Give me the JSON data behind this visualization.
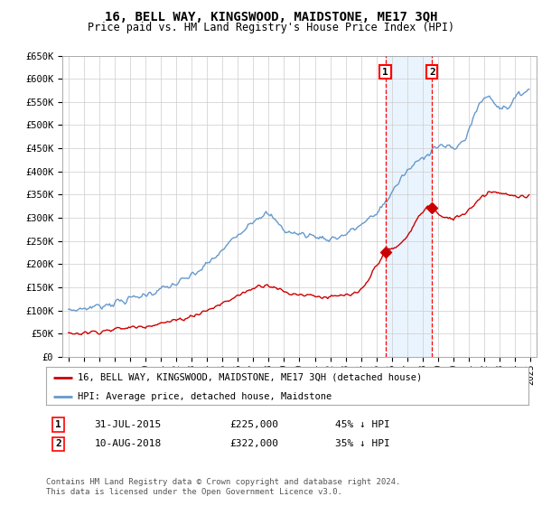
{
  "title": "16, BELL WAY, KINGSWOOD, MAIDSTONE, ME17 3QH",
  "subtitle": "Price paid vs. HM Land Registry's House Price Index (HPI)",
  "ylim": [
    0,
    650000
  ],
  "yticks": [
    0,
    50000,
    100000,
    150000,
    200000,
    250000,
    300000,
    350000,
    400000,
    450000,
    500000,
    550000,
    600000,
    650000
  ],
  "ytick_labels": [
    "£0",
    "£50K",
    "£100K",
    "£150K",
    "£200K",
    "£250K",
    "£300K",
    "£350K",
    "£400K",
    "£450K",
    "£500K",
    "£550K",
    "£600K",
    "£650K"
  ],
  "hpi_color": "#6699cc",
  "price_color": "#cc0000",
  "sale1_date": 2015.58,
  "sale1_price": 225000,
  "sale2_date": 2018.61,
  "sale2_price": 322000,
  "legend_line1": "16, BELL WAY, KINGSWOOD, MAIDSTONE, ME17 3QH (detached house)",
  "legend_line2": "HPI: Average price, detached house, Maidstone",
  "note1_label": "1",
  "note1_date": "31-JUL-2015",
  "note1_price": "£225,000",
  "note1_pct": "45% ↓ HPI",
  "note2_label": "2",
  "note2_date": "10-AUG-2018",
  "note2_price": "£322,000",
  "note2_pct": "35% ↓ HPI",
  "footer": "Contains HM Land Registry data © Crown copyright and database right 2024.\nThis data is licensed under the Open Government Licence v3.0.",
  "background_color": "#ffffff",
  "grid_color": "#cccccc",
  "shading_color": "#ddeeff"
}
